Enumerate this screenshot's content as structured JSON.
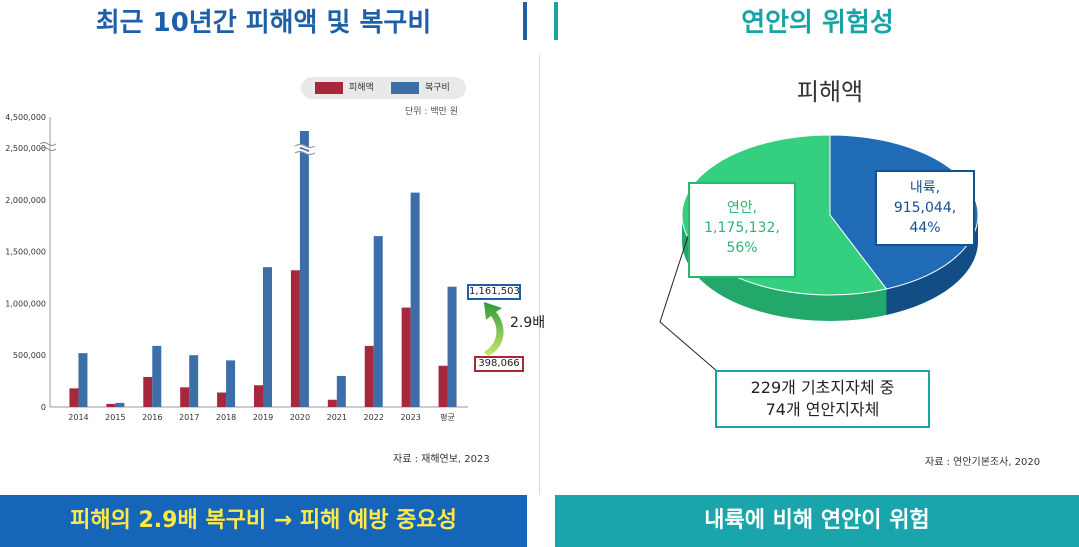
{
  "left_panel": {
    "title": "최근 10년간 피해액 및 복구비",
    "unit": "단위 : 백만 원",
    "source": "자료 : 재해연보, 2023",
    "highlight_damage": "398,066",
    "highlight_recovery": "1,161,503",
    "ratio": "2.9배",
    "banner": "피해의 2.9배 복구비 → 피해 예방 중요성"
  },
  "right_panel": {
    "title": "연안의 위험성",
    "chart_title": "피해액",
    "coastal_label": "연안,\n1,175,132,\n56%",
    "inland_label": "내륙,\n915,044,\n44%",
    "note_line1": "229개 기초지자체 중",
    "note_line2": "74개 연안지자체",
    "source": "자료 : 연안기본조사, 2020",
    "banner": "내륙에 비해 연안이 위험"
  },
  "chart_data": [
    {
      "type": "bar",
      "categories": [
        "2014",
        "2015",
        "2016",
        "2017",
        "2018",
        "2019",
        "2020",
        "2021",
        "2022",
        "2023",
        "평균"
      ],
      "series": [
        {
          "name": "피해액",
          "color": "#a8283b",
          "values": [
            180000,
            30000,
            290000,
            190000,
            140000,
            210000,
            1320000,
            70000,
            590000,
            960000,
            398066
          ]
        },
        {
          "name": "복구비",
          "color": "#3e6ea8",
          "values": [
            520000,
            40000,
            590000,
            500000,
            450000,
            1350000,
            4600000,
            300000,
            1650000,
            2070000,
            1161503
          ]
        }
      ],
      "ytick_labels": [
        "0",
        "500,000",
        "1,000,000",
        "1,500,000",
        "2,000,000",
        "2,500,000",
        "4,500,000"
      ],
      "yticks": [
        0,
        500000,
        1000000,
        1500000,
        2000000,
        2500000
      ],
      "ylim": [
        0,
        2800000
      ],
      "axis_break": true,
      "legend_position": "top-right"
    },
    {
      "type": "pie",
      "labels": [
        "연안",
        "내륙"
      ],
      "values": [
        1175132,
        915044
      ],
      "percent": [
        56,
        44
      ],
      "colors": [
        "#35d07f",
        "#1f6bb5"
      ]
    }
  ]
}
